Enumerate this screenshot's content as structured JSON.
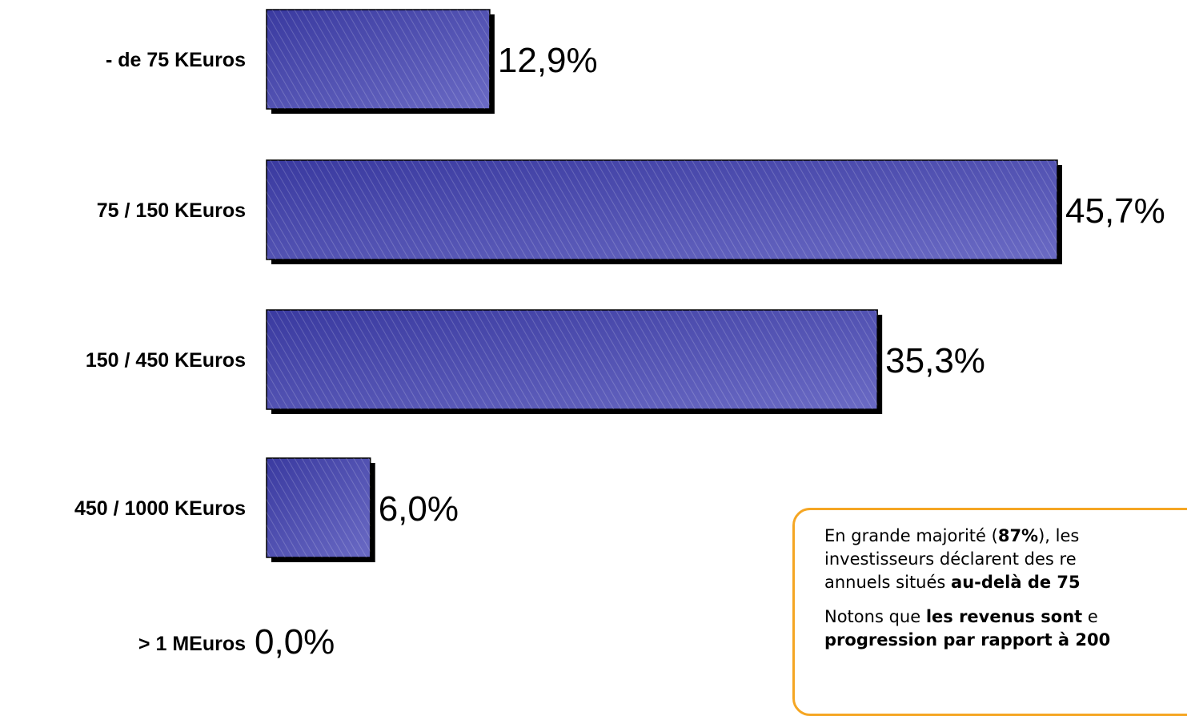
{
  "chart_data": {
    "type": "bar",
    "orientation": "horizontal",
    "categories": [
      "- de 75 KEuros",
      "75 / 150 KEuros",
      "150 / 450 KEuros",
      "450 / 1000 KEuros",
      "> 1 MEuros"
    ],
    "values": [
      12.9,
      45.7,
      35.3,
      6.0,
      0.0
    ],
    "value_labels": [
      "12,9%",
      "45,7%",
      "35,3%",
      "6,0%",
      "0,0%"
    ],
    "xlim": [
      0,
      45.7
    ],
    "grid": false,
    "legend": "none",
    "colors": {
      "bar": "#4a4aa8",
      "bar_light": "#7272c8",
      "shadow": "#000000"
    }
  },
  "note": {
    "line1_pre": "En grande majorité (",
    "line1_bold": "87%",
    "line1_post": "), les",
    "line2": "investisseurs déclarent des re",
    "line3_pre": "annuels situés ",
    "line3_bold": "au-delà de 75",
    "para2_line1_pre": "Notons que ",
    "para2_line1_bold": "les revenus sont",
    "para2_line1_post": " e",
    "para2_line2_bold": "progression par rapport à 200"
  }
}
